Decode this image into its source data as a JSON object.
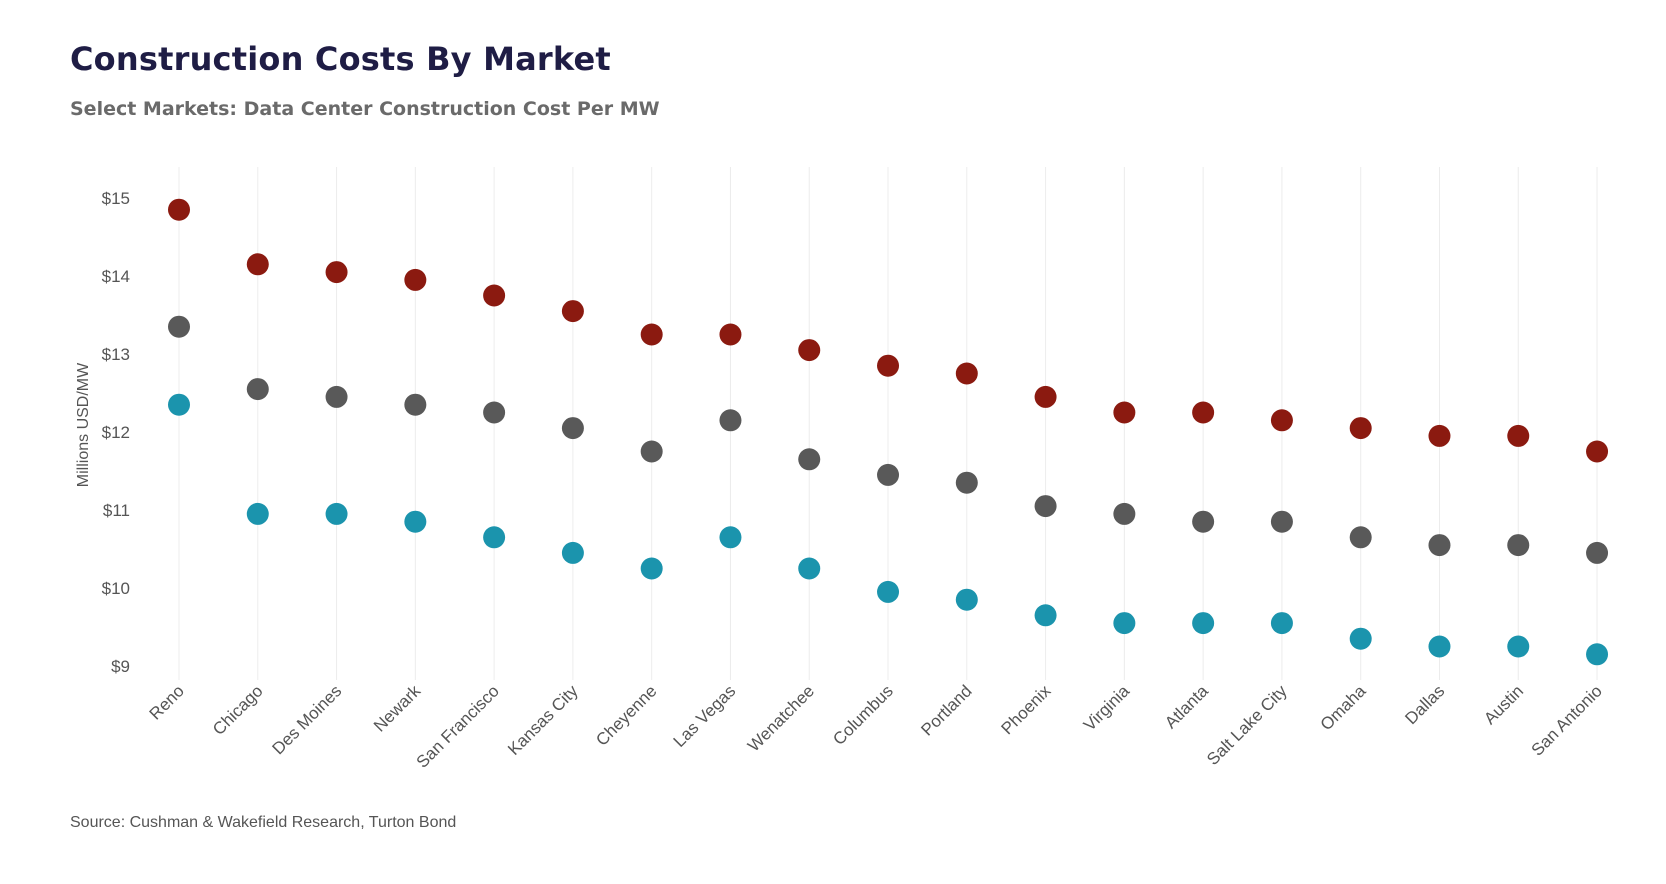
{
  "header": {
    "title": "Construction Costs By Market",
    "subtitle": "Select Markets: Data Center Construction Cost Per MW"
  },
  "footer": {
    "source": "Source: Cushman & Wakefield Research, Turton Bond"
  },
  "colors": {
    "series_high": "#8b1a10",
    "series_mid": "#595959",
    "series_low": "#1b94ad",
    "grid": "#ececec",
    "title": "#1f1d45"
  },
  "chart_data": {
    "type": "scatter",
    "title": "Construction Costs By Market",
    "subtitle": "Select Markets: Data Center Construction Cost Per MW",
    "xlabel": "",
    "ylabel": "Millions USD/MW",
    "ylim": [
      9,
      15
    ],
    "yticks": [
      9,
      10,
      11,
      12,
      13,
      14,
      15
    ],
    "ytick_labels": [
      "$9",
      "$10",
      "$11",
      "$12",
      "$13",
      "$14",
      "$15"
    ],
    "grid": "vertical",
    "legend": "none",
    "categories": [
      "Reno",
      "Chicago",
      "Des Moines",
      "Newark",
      "San Francisco",
      "Kansas City",
      "Cheyenne",
      "Las Vegas",
      "Wenatchee",
      "Columbus",
      "Portland",
      "Phoenix",
      "Virginia",
      "Atlanta",
      "Salt Lake City",
      "Omaha",
      "Dallas",
      "Austin",
      "San Antonio"
    ],
    "series": [
      {
        "color": "#8b1a10",
        "values": [
          14.85,
          14.15,
          14.05,
          13.95,
          13.75,
          13.55,
          13.25,
          13.25,
          13.05,
          12.85,
          12.75,
          12.45,
          12.25,
          12.25,
          12.15,
          12.05,
          11.95,
          11.95,
          11.75
        ]
      },
      {
        "color": "#595959",
        "values": [
          13.35,
          12.55,
          12.45,
          12.35,
          12.25,
          12.05,
          11.75,
          12.15,
          11.65,
          11.45,
          11.35,
          11.05,
          10.95,
          10.85,
          10.85,
          10.65,
          10.55,
          10.55,
          10.45
        ]
      },
      {
        "color": "#1b94ad",
        "values": [
          12.35,
          10.95,
          10.95,
          10.85,
          10.65,
          10.45,
          10.25,
          10.65,
          10.25,
          9.95,
          9.85,
          9.65,
          9.55,
          9.55,
          9.55,
          9.35,
          9.25,
          9.25,
          9.15
        ]
      }
    ]
  }
}
